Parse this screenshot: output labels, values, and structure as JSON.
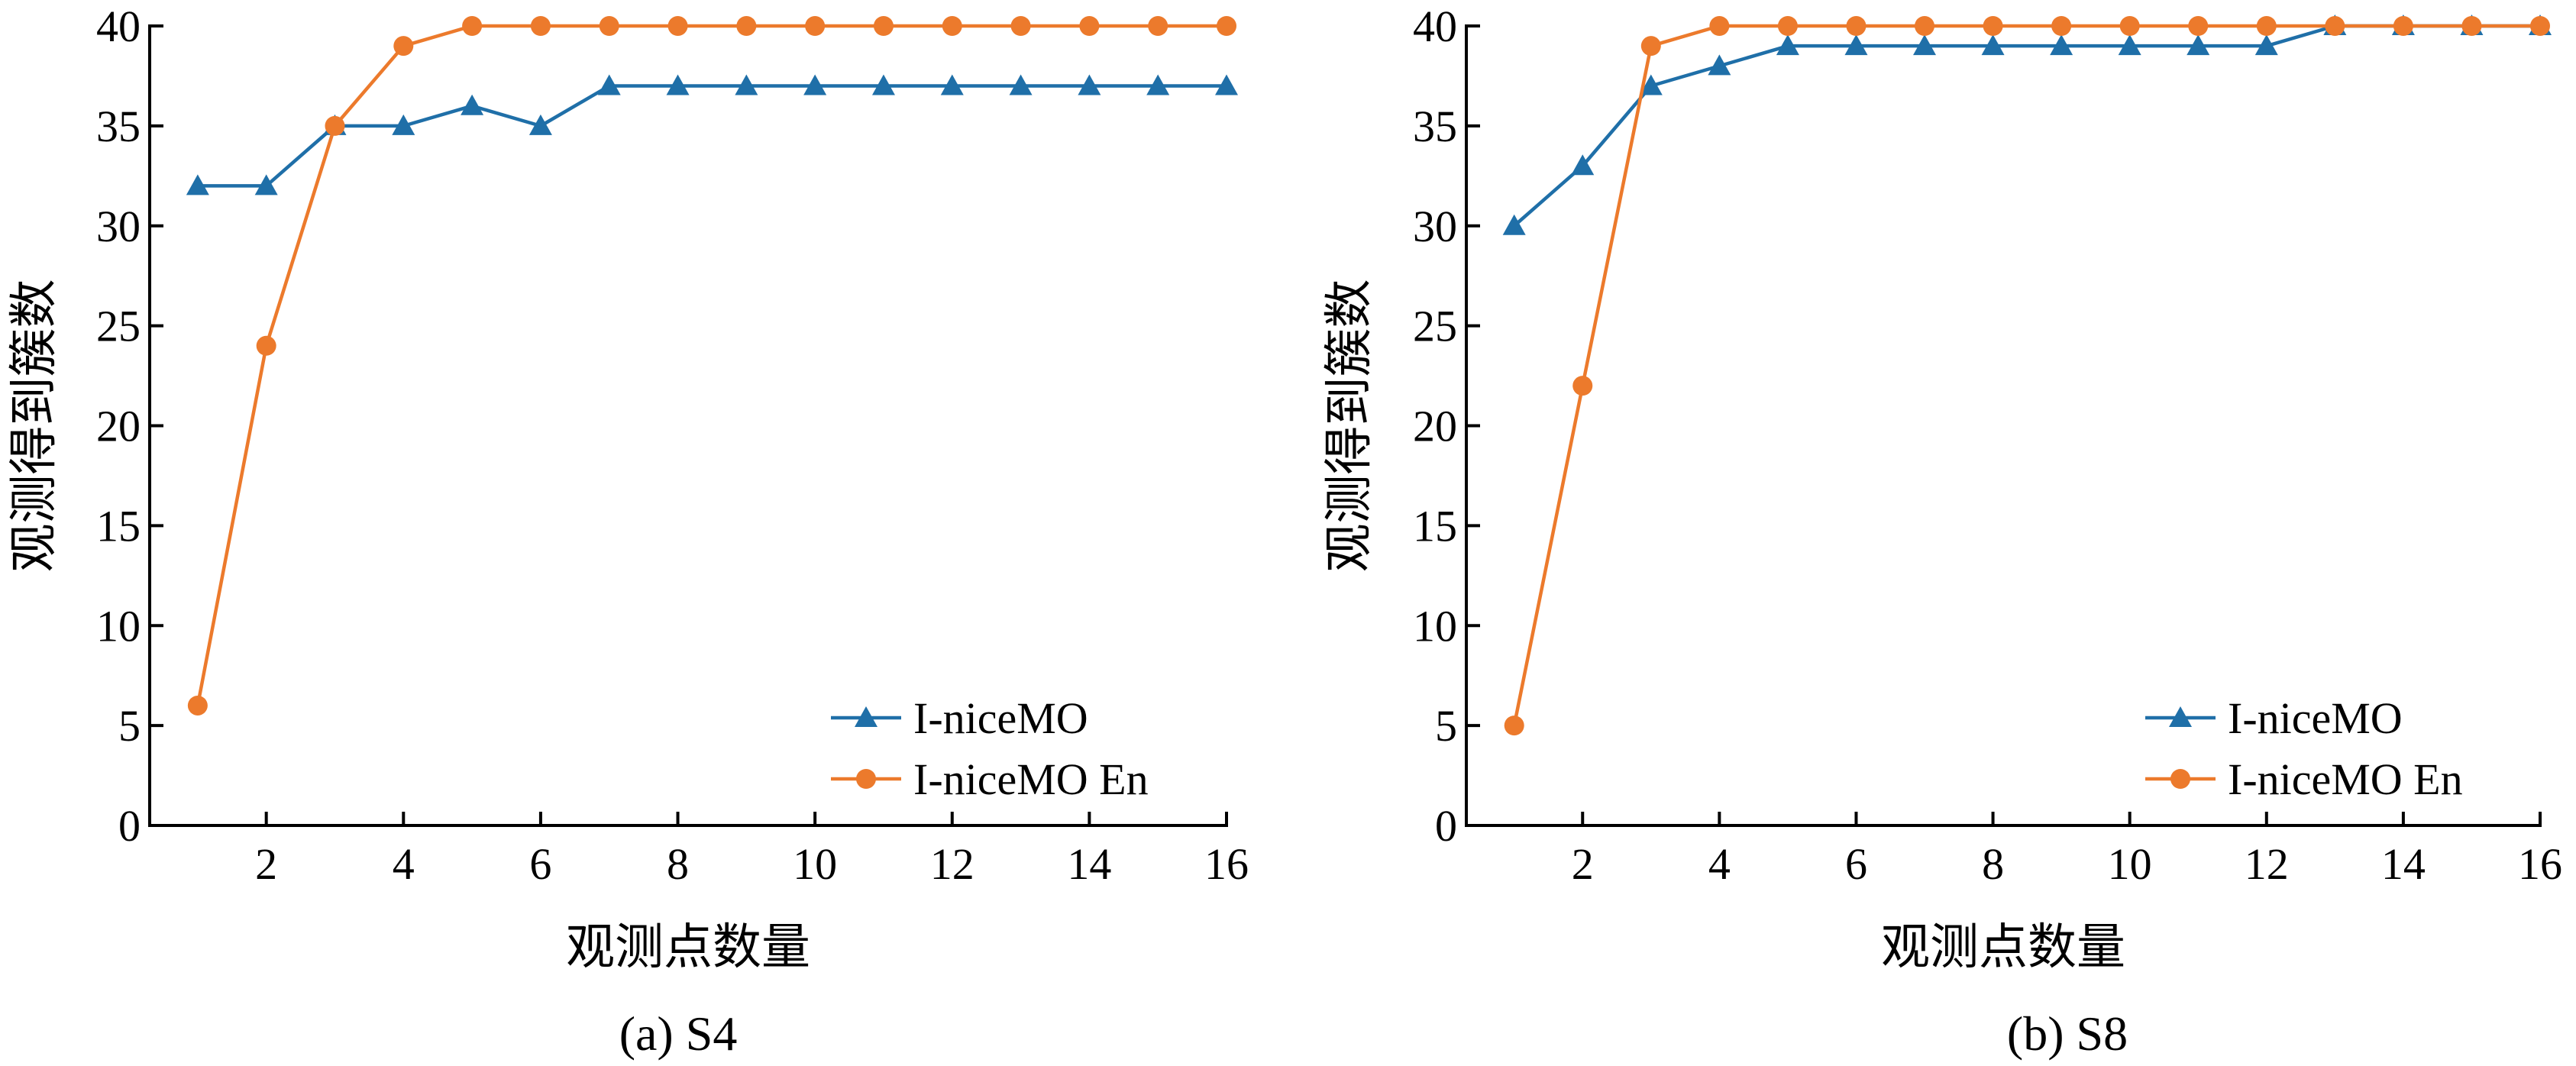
{
  "colors": {
    "series_1": "#1f6fa8",
    "series_2": "#ec7a2c",
    "axis": "#000000"
  },
  "chart_data": [
    {
      "type": "line",
      "caption": "(a) S4",
      "xlabel": "观测点数量",
      "ylabel": "观测得到簇数",
      "xlim": [
        0.3,
        16
      ],
      "ylim": [
        0,
        40
      ],
      "xticks": [
        2,
        4,
        6,
        8,
        10,
        12,
        14,
        16
      ],
      "xtick_labels": [
        "2",
        "4",
        "6",
        "8",
        "10",
        "12",
        "14",
        "16"
      ],
      "yticks": [
        0,
        5,
        10,
        15,
        20,
        25,
        30,
        35,
        40
      ],
      "ytick_labels": [
        "0",
        "5",
        "10",
        "15",
        "20",
        "25",
        "30",
        "35",
        "40"
      ],
      "grid": false,
      "legend_position": "bottom-right",
      "x": [
        1,
        2,
        3,
        4,
        5,
        6,
        7,
        8,
        9,
        10,
        11,
        12,
        13,
        14,
        15,
        16
      ],
      "series": [
        {
          "name": "I-niceMO",
          "marker": "triangle",
          "color": "#1f6fa8",
          "values": [
            32,
            32,
            35,
            35,
            36,
            35,
            37,
            37,
            37,
            37,
            37,
            37,
            37,
            37,
            37,
            37
          ]
        },
        {
          "name": "I-niceMO En",
          "marker": "circle",
          "color": "#ec7a2c",
          "values": [
            6,
            24,
            35,
            39,
            40,
            40,
            40,
            40,
            40,
            40,
            40,
            40,
            40,
            40,
            40,
            40
          ]
        }
      ]
    },
    {
      "type": "line",
      "caption": "(b) S8",
      "xlabel": "观测点数量",
      "ylabel": "观测得到簇数",
      "xlim": [
        0.3,
        16
      ],
      "ylim": [
        0,
        40
      ],
      "xticks": [
        2,
        4,
        6,
        8,
        10,
        12,
        14,
        16
      ],
      "xtick_labels": [
        "2",
        "4",
        "6",
        "8",
        "10",
        "12",
        "14",
        "16"
      ],
      "yticks": [
        0,
        5,
        10,
        15,
        20,
        25,
        30,
        35,
        40
      ],
      "ytick_labels": [
        "0",
        "5",
        "10",
        "15",
        "20",
        "25",
        "30",
        "35",
        "40"
      ],
      "grid": false,
      "legend_position": "bottom-right",
      "x": [
        1,
        2,
        3,
        4,
        5,
        6,
        7,
        8,
        9,
        10,
        11,
        12,
        13,
        14,
        15,
        16
      ],
      "series": [
        {
          "name": "I-niceMO",
          "marker": "triangle",
          "color": "#1f6fa8",
          "values": [
            30,
            33,
            37,
            38,
            39,
            39,
            39,
            39,
            39,
            39,
            39,
            39,
            40,
            40,
            40,
            40
          ]
        },
        {
          "name": "I-niceMO En",
          "marker": "circle",
          "color": "#ec7a2c",
          "values": [
            5,
            22,
            39,
            40,
            40,
            40,
            40,
            40,
            40,
            40,
            40,
            40,
            40,
            40,
            40,
            40
          ]
        }
      ]
    }
  ]
}
